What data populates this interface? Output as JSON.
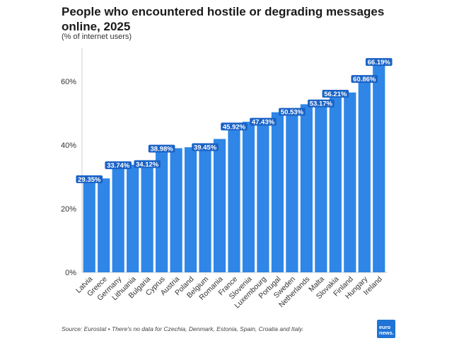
{
  "chart_data": {
    "type": "bar",
    "title": "People who encountered hostile or degrading messages online, 2025",
    "subtitle": "(% of internet users)",
    "categories": [
      "Latvia",
      "Greece",
      "Germany",
      "Lithuania",
      "Bulgaria",
      "Cyprus",
      "Austria",
      "Poland",
      "Belgium",
      "Romania",
      "France",
      "Slovenia",
      "Luxembourg",
      "Portugal",
      "Sweden",
      "Netherlands",
      "Malta",
      "Slovakia",
      "Finland",
      "Hungary",
      "Ireland"
    ],
    "values": [
      29.35,
      29.5,
      33.74,
      33.8,
      34.12,
      38.98,
      39.0,
      39.3,
      39.45,
      41.9,
      45.92,
      47.3,
      47.43,
      50.3,
      50.53,
      52.8,
      53.17,
      56.21,
      56.5,
      60.86,
      66.19
    ],
    "data_labels": {
      "0": "29.35%",
      "2": "33.74%",
      "4": "34.12%",
      "5": "38.98%",
      "8": "39.45%",
      "10": "45.92%",
      "12": "47.43%",
      "14": "50.53%",
      "16": "53.17%",
      "17": "56.21%",
      "19": "60.86%",
      "20": "66.19%"
    },
    "y_ticks": [
      0,
      20,
      40,
      60
    ],
    "y_tick_labels": [
      "0%",
      "20%",
      "40%",
      "60%"
    ],
    "ylim": [
      0,
      70
    ],
    "grid": false,
    "bar_color": "#2f86e6",
    "label_color": "#1a62c6"
  },
  "footer": {
    "source": "Source: Eurostat • There's no data for Czechia, Denmark, Estonia, Spain, Croatia and Italy."
  },
  "logo": {
    "line1": "euro",
    "line2": "news."
  }
}
